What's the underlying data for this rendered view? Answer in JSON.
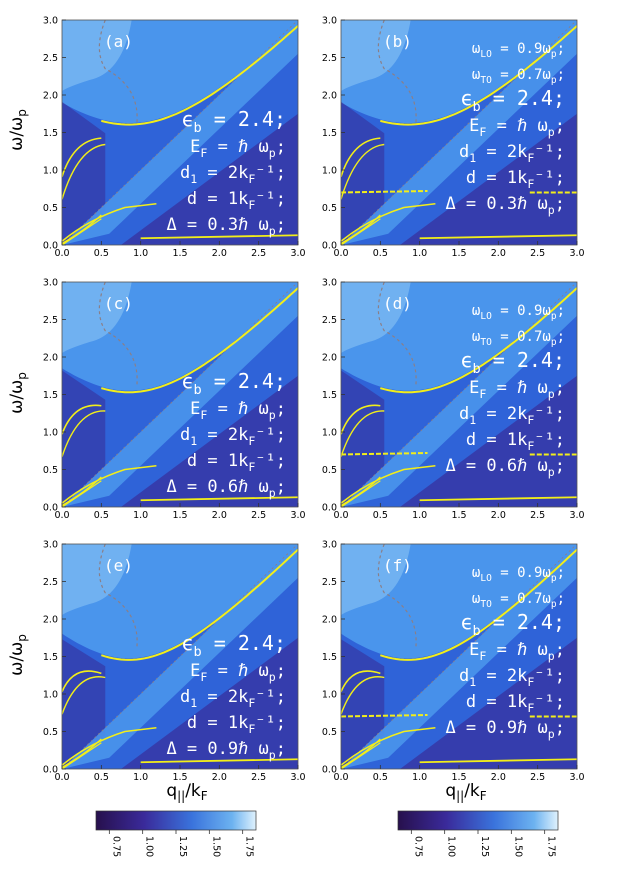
{
  "figure": {
    "y_axis_label": "ω/ω",
    "y_axis_label_sub": "p",
    "x_axis_label": "q",
    "x_axis_label_sub1": "||",
    "x_axis_label_mid": "/k",
    "x_axis_label_sub2": "F"
  },
  "colors": {
    "dark": "#3a1f8a",
    "mid": "#2f63d8",
    "light": "#4a95ec",
    "lightest": "#8fc8f5",
    "curve": "#f2ee1a",
    "dashed": "#8a7f88",
    "annotation": "#ffffff"
  },
  "chart_data": {
    "type": "heatmap",
    "xlim": [
      0,
      3
    ],
    "ylim": [
      0,
      3
    ],
    "x_ticks": [
      "0.0",
      "0.5",
      "1.0",
      "1.5",
      "2.0",
      "2.5",
      "3.0"
    ],
    "y_ticks": [
      "0.0",
      "0.5",
      "1.0",
      "1.5",
      "2.0",
      "2.5",
      "3.0"
    ],
    "panels": [
      {
        "id": "a",
        "label": "(a)",
        "delta": 0.3,
        "phonon": false,
        "annotations": [
          "ϵ_b = 2.4;",
          "E_F = ℏ ω_p;",
          "d_1 = 2k_F⁻¹;",
          "d = 1k_F⁻¹;",
          "Δ = 0.3ℏ ω_p;"
        ]
      },
      {
        "id": "b",
        "label": "(b)",
        "delta": 0.3,
        "phonon": true,
        "annotations": [
          "ω_LO = 0.9ω_p;",
          "ω_TO = 0.7ω_p;",
          "ϵ_b = 2.4;",
          "E_F = ℏ ω_p;",
          "d_1 = 2k_F⁻¹;",
          "d = 1k_F⁻¹;",
          "Δ = 0.3ℏ ω_p;"
        ]
      },
      {
        "id": "c",
        "label": "(c)",
        "delta": 0.6,
        "phonon": false,
        "annotations": [
          "ϵ_b = 2.4;",
          "E_F = ℏ ω_p;",
          "d_1 = 2k_F⁻¹;",
          "d = 1k_F⁻¹;",
          "Δ = 0.6ℏ ω_p;"
        ]
      },
      {
        "id": "d",
        "label": "(d)",
        "delta": 0.6,
        "phonon": true,
        "annotations": [
          "ω_LO = 0.9ω_p;",
          "ω_TO = 0.7ω_p;",
          "ϵ_b = 2.4;",
          "E_F = ℏ ω_p;",
          "d_1 = 2k_F⁻¹;",
          "d = 1k_F⁻¹;",
          "Δ = 0.6ℏ ω_p;"
        ]
      },
      {
        "id": "e",
        "label": "(e)",
        "delta": 0.9,
        "phonon": false,
        "annotations": [
          "ϵ_b = 2.4;",
          "E_F = ℏ ω_p;",
          "d_1 = 2k_F⁻¹;",
          "d = 1k_F⁻¹;",
          "Δ = 0.9ℏ ω_p;"
        ]
      },
      {
        "id": "f",
        "label": "(f)",
        "delta": 0.9,
        "phonon": true,
        "annotations": [
          "ω_LO = 0.9ω_p;",
          "ω_TO = 0.7ω_p;",
          "ϵ_b = 2.4;",
          "E_F = ℏ ω_p;",
          "d_1 = 2k_F⁻¹;",
          "d = 1k_F⁻¹;",
          "Δ = 0.9ℏ ω_p;"
        ]
      }
    ],
    "colorbars": [
      {
        "ticks": [
          "0.75",
          "1.00",
          "1.25",
          "1.50",
          "1.75"
        ],
        "range": [
          0.65,
          1.85
        ]
      },
      {
        "ticks": [
          "0.75",
          "1.00",
          "1.25",
          "1.50",
          "1.75"
        ],
        "range": [
          0.65,
          1.85
        ]
      }
    ]
  }
}
